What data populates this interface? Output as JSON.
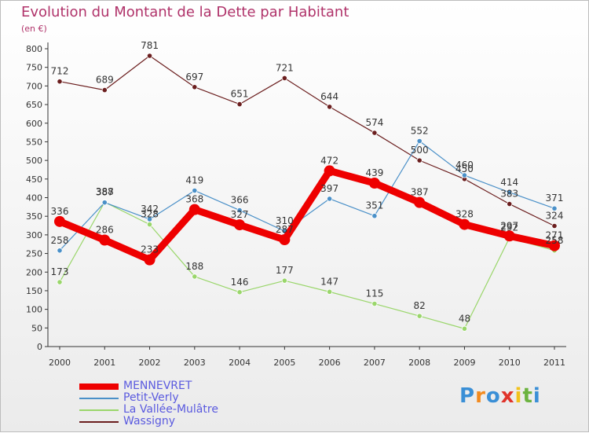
{
  "title": "Evolution du Montant de la Dette par Habitant",
  "subtitle": "(en €)",
  "logo": "Proxiti",
  "colors": {
    "title": "#b0336a",
    "legend_text": "#5a5adf",
    "axis": "#333333"
  },
  "chart_data": {
    "type": "line",
    "title": "Evolution du Montant de la Dette par Habitant",
    "subtitle": "(en €)",
    "xlabel": "",
    "ylabel": "",
    "x": [
      "2000",
      "2001",
      "2002",
      "2003",
      "2004",
      "2005",
      "2006",
      "2007",
      "2008",
      "2009",
      "2010",
      "2011"
    ],
    "ylim": [
      0,
      800
    ],
    "yticks": [
      "0",
      "50",
      "100",
      "150",
      "200",
      "250",
      "300",
      "350",
      "400",
      "450",
      "500",
      "550",
      "600",
      "650",
      "700",
      "750",
      "800"
    ],
    "grid": false,
    "legend_position": "bottom-left",
    "series": [
      {
        "name": "MENNEVRET",
        "color": "#ee0000",
        "values": [
          336,
          286,
          233,
          368,
          327,
          287,
          472,
          439,
          387,
          328,
          297,
          271
        ]
      },
      {
        "name": "Petit-Verly",
        "color": "#4a90c8",
        "values": [
          258,
          387,
          342,
          419,
          366,
          310,
          397,
          351,
          552,
          460,
          414,
          371
        ]
      },
      {
        "name": "La Vallée-Mulâtre",
        "color": "#9ad66b",
        "values": [
          173,
          388,
          328,
          188,
          146,
          177,
          147,
          115,
          82,
          48,
          292,
          258
        ]
      },
      {
        "name": "Wassigny",
        "color": "#6b1e1e",
        "values": [
          712,
          689,
          781,
          697,
          651,
          721,
          644,
          574,
          500,
          450,
          383,
          324
        ]
      }
    ]
  }
}
